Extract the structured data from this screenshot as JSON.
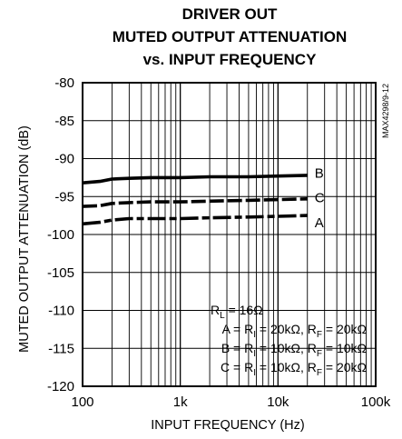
{
  "chart_data": {
    "type": "line",
    "title": [
      "DRIVER OUT",
      "MUTED OUTPUT ATTENUATION",
      "vs. INPUT FREQUENCY"
    ],
    "xlabel": "INPUT FREQUENCY (Hz)",
    "ylabel": "MUTED OUTPUT ATTENUATION (dB)",
    "x_scale": "log",
    "xlim": [
      100,
      100000
    ],
    "ylim": [
      -120,
      -80
    ],
    "x_ticks": [
      {
        "value": 100,
        "label": "100"
      },
      {
        "value": 1000,
        "label": "1k"
      },
      {
        "value": 10000,
        "label": "10k"
      },
      {
        "value": 100000,
        "label": "100k"
      }
    ],
    "y_ticks": [
      {
        "value": -80,
        "label": "-80"
      },
      {
        "value": -85,
        "label": "-85"
      },
      {
        "value": -90,
        "label": "-90"
      },
      {
        "value": -95,
        "label": "-95"
      },
      {
        "value": -100,
        "label": "-100"
      },
      {
        "value": -105,
        "label": "-105"
      },
      {
        "value": -110,
        "label": "-110"
      },
      {
        "value": -115,
        "label": "-115"
      },
      {
        "value": -120,
        "label": "-120"
      }
    ],
    "grid": true,
    "series": [
      {
        "name": "B",
        "style": "solid",
        "color": "#000000",
        "x": [
          100,
          150,
          200,
          300,
          500,
          1000,
          2000,
          5000,
          10000,
          20000
        ],
        "y": [
          -93.2,
          -93.0,
          -92.7,
          -92.6,
          -92.5,
          -92.5,
          -92.4,
          -92.4,
          -92.3,
          -92.2
        ]
      },
      {
        "name": "C",
        "style": "dashed",
        "color": "#000000",
        "x": [
          100,
          150,
          200,
          300,
          500,
          1000,
          2000,
          5000,
          10000,
          20000
        ],
        "y": [
          -96.3,
          -96.2,
          -95.9,
          -95.8,
          -95.7,
          -95.7,
          -95.6,
          -95.5,
          -95.4,
          -95.3
        ]
      },
      {
        "name": "A",
        "style": "dash-dot",
        "color": "#000000",
        "x": [
          100,
          150,
          200,
          300,
          500,
          1000,
          2000,
          5000,
          10000,
          20000
        ],
        "y": [
          -98.6,
          -98.4,
          -98.1,
          -97.9,
          -97.9,
          -97.9,
          -97.8,
          -97.7,
          -97.6,
          -97.5
        ]
      }
    ],
    "series_label_y": [
      -91.8,
      -95.0,
      -98.3
    ],
    "conditions": {
      "rl": {
        "lead": "R",
        "sub": "L",
        "tail": " = 16Ω"
      },
      "lines": [
        [
          {
            "t": "A = R"
          },
          {
            "t": "I",
            "sub": true
          },
          {
            "t": " = 20kΩ, R"
          },
          {
            "t": "F",
            "sub": true
          },
          {
            "t": " = 20kΩ"
          }
        ],
        [
          {
            "t": "B = R"
          },
          {
            "t": "I",
            "sub": true
          },
          {
            "t": " = 10kΩ, R"
          },
          {
            "t": "F",
            "sub": true
          },
          {
            "t": " = 10kΩ"
          }
        ],
        [
          {
            "t": "C = R"
          },
          {
            "t": "I",
            "sub": true
          },
          {
            "t": " = 10kΩ, R"
          },
          {
            "t": "F",
            "sub": true
          },
          {
            "t": " = 20kΩ"
          }
        ]
      ]
    },
    "figure_code": "MAX4298/9-12"
  }
}
